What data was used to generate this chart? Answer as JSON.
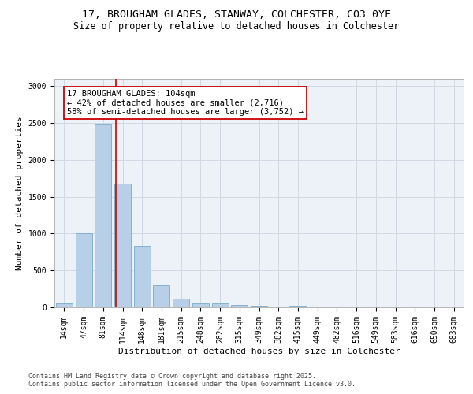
{
  "title": "17, BROUGHAM GLADES, STANWAY, COLCHESTER, CO3 0YF",
  "subtitle": "Size of property relative to detached houses in Colchester",
  "xlabel": "Distribution of detached houses by size in Colchester",
  "ylabel": "Number of detached properties",
  "categories": [
    "14sqm",
    "47sqm",
    "81sqm",
    "114sqm",
    "148sqm",
    "181sqm",
    "215sqm",
    "248sqm",
    "282sqm",
    "315sqm",
    "349sqm",
    "382sqm",
    "415sqm",
    "449sqm",
    "482sqm",
    "516sqm",
    "549sqm",
    "583sqm",
    "616sqm",
    "650sqm",
    "683sqm"
  ],
  "values": [
    50,
    1000,
    2490,
    1680,
    830,
    295,
    120,
    55,
    50,
    35,
    20,
    0,
    20,
    0,
    0,
    0,
    0,
    0,
    0,
    0,
    0
  ],
  "bar_color": "#b8cfe8",
  "bar_edge_color": "#7aaacf",
  "vline_pos": 2.67,
  "annotation_text": "17 BROUGHAM GLADES: 104sqm\n← 42% of detached houses are smaller (2,716)\n58% of semi-detached houses are larger (3,752) →",
  "annotation_box_facecolor": "#ffffff",
  "annotation_box_edgecolor": "#cc0000",
  "vline_color": "#cc0000",
  "ylim": [
    0,
    3100
  ],
  "yticks": [
    0,
    500,
    1000,
    1500,
    2000,
    2500,
    3000
  ],
  "grid_color": "#d0d8e4",
  "bg_color": "#edf2f8",
  "footer_text": "Contains HM Land Registry data © Crown copyright and database right 2025.\nContains public sector information licensed under the Open Government Licence v3.0.",
  "title_fontsize": 9.5,
  "subtitle_fontsize": 8.5,
  "ylabel_fontsize": 8,
  "xlabel_fontsize": 8,
  "tick_fontsize": 7,
  "annot_fontsize": 7.5,
  "footer_fontsize": 6
}
